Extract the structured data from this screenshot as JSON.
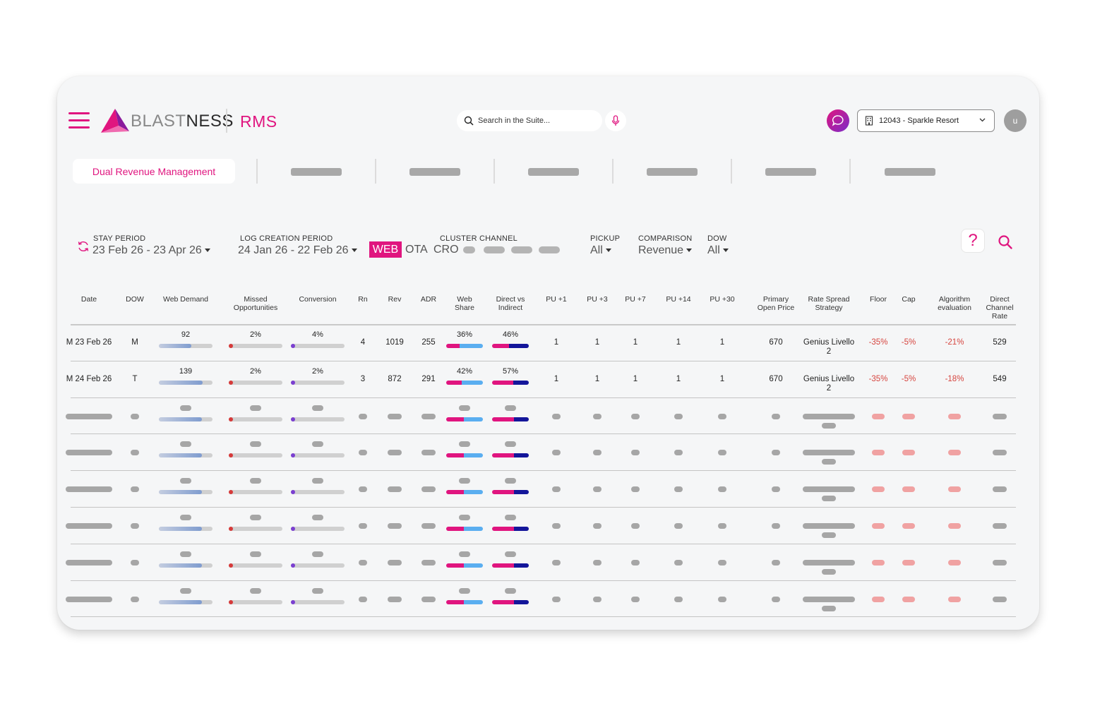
{
  "header": {
    "logo_light": "BLAST",
    "logo_bold": "NESS",
    "app_name": "RMS",
    "search_placeholder": "Search in the Suite...",
    "property": "12043 - Sparkle Resort",
    "avatar_initial": "u"
  },
  "tabs": {
    "active": "Dual Revenue Management"
  },
  "filters": {
    "stay_period_label": "STAY PERIOD",
    "stay_period_value": "23 Feb 26 - 23 Apr 26",
    "log_period_label": "LOG CREATION PERIOD",
    "log_period_value": "24 Jan 26 - 22 Feb 26",
    "channels": [
      "WEB",
      "OTA",
      "CRO"
    ],
    "active_channel": "WEB",
    "cluster_label": "CLUSTER CHANNEL",
    "pickup_label": "PICKUP",
    "pickup_value": "All",
    "comparison_label": "COMPARISON",
    "comparison_value": "Revenue",
    "dow_label": "DOW",
    "dow_value": "All",
    "help_symbol": "?"
  },
  "table": {
    "headers": {
      "date": "Date",
      "dow": "DOW",
      "web_demand": "Web Demand",
      "missed_1": "Missed",
      "missed_2": "Opportunities",
      "conversion": "Conversion",
      "rn": "Rn",
      "rev": "Rev",
      "adr": "ADR",
      "web_share_1": "Web",
      "web_share_2": "Share",
      "direct_1": "Direct vs",
      "direct_2": "Indirect",
      "pu1": "PU +1",
      "pu3": "PU +3",
      "pu7": "PU +7",
      "pu14": "PU +14",
      "pu30": "PU +30",
      "primary_1": "Primary",
      "primary_2": "Open Price",
      "rate_1": "Rate Spread",
      "rate_2": "Strategy",
      "floor": "Floor",
      "cap": "Cap",
      "algo_1": "Algorithm",
      "algo_2": "evaluation",
      "dcr_1": "Direct",
      "dcr_2": "Channel",
      "dcr_3": "Rate"
    },
    "rows": [
      {
        "date": "M 23 Feb 26",
        "dow": "M",
        "web_demand": "92",
        "web_demand_fill": 0.6,
        "missed": "2%",
        "conversion": "4%",
        "rn": "4",
        "rev": "1019",
        "adr": "255",
        "web_share": "36%",
        "web_share_frac": 0.36,
        "direct": "46%",
        "direct_frac": 0.46,
        "pu1": "1",
        "pu3": "1",
        "pu7": "1",
        "pu14": "1",
        "pu30": "1",
        "primary": "670",
        "rate_1": "Genius Livello",
        "rate_2": "2",
        "floor": "-35%",
        "cap": "-5%",
        "algo": "-21%",
        "dcr": "529"
      },
      {
        "date": "M 24 Feb 26",
        "dow": "T",
        "web_demand": "139",
        "web_demand_fill": 0.82,
        "missed": "2%",
        "conversion": "2%",
        "rn": "3",
        "rev": "872",
        "adr": "291",
        "web_share": "42%",
        "web_share_frac": 0.42,
        "direct": "57%",
        "direct_frac": 0.57,
        "pu1": "1",
        "pu3": "1",
        "pu7": "1",
        "pu14": "1",
        "pu30": "1",
        "primary": "670",
        "rate_1": "Genius Livello",
        "rate_2": "2",
        "floor": "-35%",
        "cap": "-5%",
        "algo": "-18%",
        "dcr": "549"
      }
    ],
    "placeholder_row_count": 6
  },
  "colors": {
    "accent": "#e0157f",
    "demand_bar": "#7f9ccf",
    "missed_dot": "#d63a3a",
    "conversion_dot": "#7b3fd0",
    "web_share_a": "#e0157f",
    "web_share_b": "#5aaef0",
    "direct_a": "#e0157f",
    "direct_b": "#14169a",
    "negative": "#d6453f"
  }
}
